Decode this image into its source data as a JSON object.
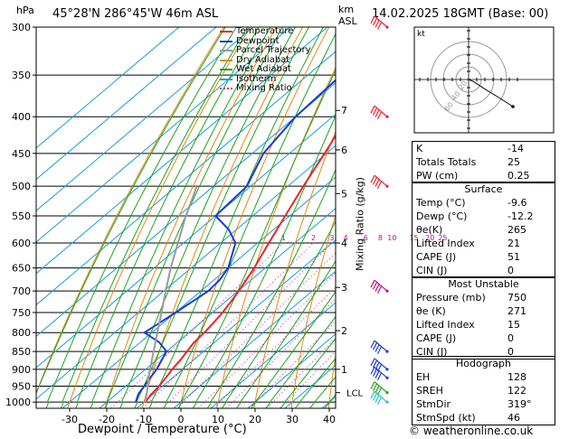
{
  "header": {
    "left_unit": "hPa",
    "location": "45°28'N  286°45'W  46m  ASL",
    "right_unit_1": "km",
    "right_unit_2": "ASL",
    "datetime": "14.02.2025  18GMT  (Base: 00)"
  },
  "chart_data": {
    "type": "skew-t",
    "xlabel": "Dewpoint / Temperature (°C)",
    "ylabel_right": "Mixing Ratio (g/kg)",
    "pressure_ticks": [
      300,
      350,
      400,
      450,
      500,
      550,
      600,
      650,
      700,
      750,
      800,
      850,
      900,
      950,
      1000
    ],
    "pressure_range": [
      300,
      1020
    ],
    "temp_ticks": [
      -30,
      -20,
      -10,
      0,
      10,
      20,
      30,
      40
    ],
    "temp_range": [
      -40,
      40
    ],
    "km_ticks": [
      {
        "label": "7",
        "p": 392
      },
      {
        "label": "6",
        "p": 445
      },
      {
        "label": "5",
        "p": 512
      },
      {
        "label": "4",
        "p": 600
      },
      {
        "label": "3",
        "p": 692
      },
      {
        "label": "2",
        "p": 795
      },
      {
        "label": "1",
        "p": 900
      }
    ],
    "lcl": {
      "label": "LCL",
      "p": 970
    },
    "mixing_ratio_labels": [
      "1",
      "2",
      "3",
      "4",
      "6",
      "8",
      "10",
      "15",
      "20",
      "25"
    ],
    "mixing_ratio_values": [
      1,
      2,
      3,
      4,
      6,
      8,
      10,
      15,
      20,
      25
    ],
    "legend": [
      {
        "name": "Temperature",
        "color": "#e8262b",
        "style": "solid"
      },
      {
        "name": "Dewpoint",
        "color": "#1c3bd6",
        "style": "solid"
      },
      {
        "name": "Parcel Trajectory",
        "color": "#9a9a9a",
        "style": "solid"
      },
      {
        "name": "Dry Adiabat",
        "color": "#e08a10",
        "style": "solid"
      },
      {
        "name": "Wet Adiabat",
        "color": "#20a020",
        "style": "solid"
      },
      {
        "name": "Isotherm",
        "color": "#18a0d8",
        "style": "solid"
      },
      {
        "name": "Mixing Ratio",
        "color": "#d020a0",
        "style": "dotted"
      }
    ],
    "series": [
      {
        "name": "Temperature",
        "color": "#e8262b",
        "points": [
          [
            1000,
            -9.6
          ],
          [
            975,
            -10.5
          ],
          [
            950,
            -11
          ],
          [
            925,
            -11.8
          ],
          [
            900,
            -12.8
          ],
          [
            875,
            -13.5
          ],
          [
            850,
            -14.5
          ],
          [
            825,
            -15.5
          ],
          [
            800,
            -15.8
          ],
          [
            775,
            -16.5
          ],
          [
            750,
            -17.3
          ],
          [
            725,
            -18.5
          ],
          [
            700,
            -19.8
          ],
          [
            650,
            -23
          ],
          [
            600,
            -27
          ],
          [
            550,
            -31.2
          ],
          [
            500,
            -35.8
          ],
          [
            450,
            -40.5
          ],
          [
            400,
            -46
          ],
          [
            350,
            -52
          ],
          [
            330,
            -55.5
          ],
          [
            300,
            -60
          ]
        ]
      },
      {
        "name": "Dewpoint",
        "color": "#1c3bd6",
        "points": [
          [
            1000,
            -12.2
          ],
          [
            975,
            -14
          ],
          [
            950,
            -15
          ],
          [
            925,
            -16
          ],
          [
            900,
            -17
          ],
          [
            875,
            -18.5
          ],
          [
            850,
            -20
          ],
          [
            825,
            -25
          ],
          [
            800,
            -32
          ],
          [
            775,
            -31
          ],
          [
            750,
            -30
          ],
          [
            725,
            -29
          ],
          [
            700,
            -28
          ],
          [
            675,
            -28.5
          ],
          [
            650,
            -30
          ],
          [
            600,
            -36
          ],
          [
            575,
            -42
          ],
          [
            550,
            -50
          ],
          [
            500,
            -51
          ],
          [
            450,
            -57
          ],
          [
            400,
            -60
          ],
          [
            350,
            -61
          ],
          [
            300,
            -71
          ]
        ]
      },
      {
        "name": "Parcel Trajectory",
        "color": "#9a9a9a",
        "points": [
          [
            1000,
            -9.6
          ],
          [
            970,
            -12.2
          ],
          [
            900,
            -18.8
          ],
          [
            850,
            -23.5
          ],
          [
            800,
            -28.5
          ],
          [
            750,
            -33.8
          ],
          [
            700,
            -39.5
          ],
          [
            650,
            -45.5
          ],
          [
            600,
            -51.5
          ],
          [
            550,
            -58
          ],
          [
            500,
            -64.5
          ]
        ]
      }
    ],
    "wind_barbs": [
      {
        "p": 300,
        "color": "#e8262b"
      },
      {
        "p": 400,
        "color": "#e8262b"
      },
      {
        "p": 500,
        "color": "#e8262b"
      },
      {
        "p": 700,
        "color": "#c01080"
      },
      {
        "p": 850,
        "color": "#1c3bd6"
      },
      {
        "p": 900,
        "color": "#1c3bd6"
      },
      {
        "p": 925,
        "color": "#1c3bd6"
      },
      {
        "p": 970,
        "color": "#20a020"
      },
      {
        "p": 1000,
        "color": "#20c0c0"
      }
    ]
  },
  "hodograph": {
    "unit_label": "kt",
    "ring_labels": [
      "20",
      "40",
      "60"
    ],
    "trace": [
      [
        0,
        0
      ],
      [
        4,
        -3
      ],
      [
        12,
        -13
      ],
      [
        25,
        -28
      ],
      [
        35,
        -40
      ]
    ]
  },
  "indices": [
    {
      "label": "K",
      "value": "-14"
    },
    {
      "label": "Totals Totals",
      "value": "25"
    },
    {
      "label": "PW (cm)",
      "value": "0.25"
    }
  ],
  "surface": {
    "title": "Surface",
    "rows": [
      {
        "label": "Temp (°C)",
        "value": "-9.6"
      },
      {
        "label": "Dewp (°C)",
        "value": "-12.2"
      },
      {
        "label": "θe(K)",
        "value": "265"
      },
      {
        "label": "Lifted Index",
        "value": "21"
      },
      {
        "label": "CAPE (J)",
        "value": "51"
      },
      {
        "label": "CIN (J)",
        "value": "0"
      }
    ]
  },
  "most_unstable": {
    "title": "Most Unstable",
    "rows": [
      {
        "label": "Pressure (mb)",
        "value": "750"
      },
      {
        "label": "θe (K)",
        "value": "271"
      },
      {
        "label": "Lifted Index",
        "value": "15"
      },
      {
        "label": "CAPE (J)",
        "value": "0"
      },
      {
        "label": "CIN (J)",
        "value": "0"
      }
    ]
  },
  "hodograph_panel": {
    "title": "Hodograph",
    "rows": [
      {
        "label": "EH",
        "value": "128"
      },
      {
        "label": "SREH",
        "value": "122"
      },
      {
        "label": "StmDir",
        "value": "319°"
      },
      {
        "label": "StmSpd (kt)",
        "value": "46"
      }
    ]
  },
  "footer": {
    "copyright": "© weatheronline.co.uk"
  }
}
